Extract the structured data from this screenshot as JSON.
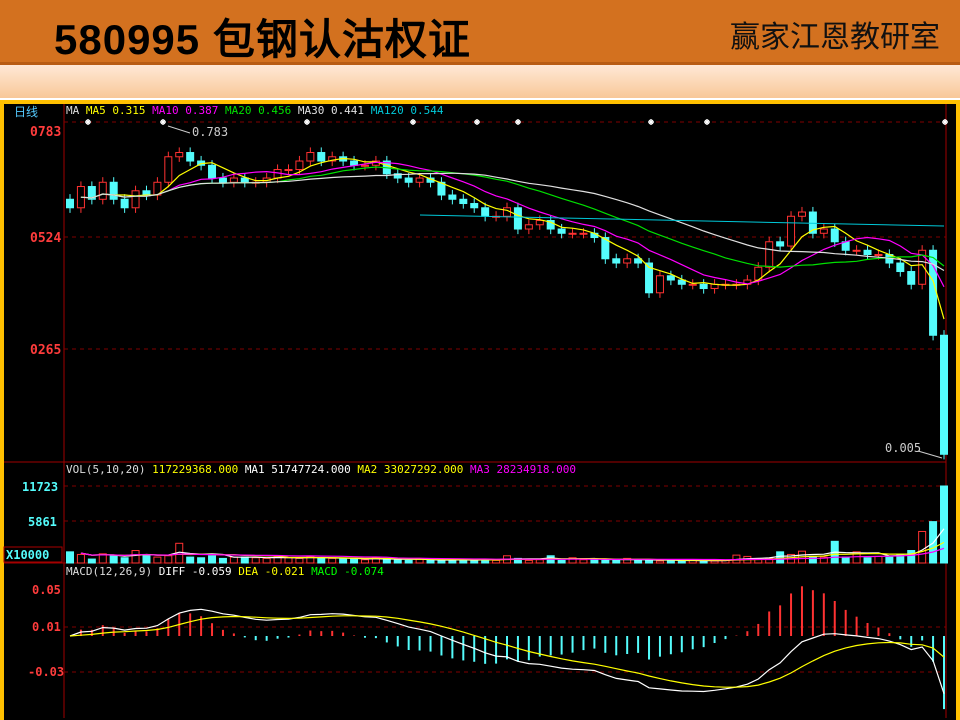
{
  "header": {
    "title": "580995 包钢认沽权证",
    "brand": "赢家江恩教研室"
  },
  "chart_data": [
    {
      "type": "candlestick",
      "period_label": "日线",
      "legend": {
        "prefix": "MA",
        "items": [
          {
            "label": "MA5",
            "value": "0.315",
            "color": "#ffff00"
          },
          {
            "label": "MA10",
            "value": "0.387",
            "color": "#ff00ff"
          },
          {
            "label": "MA20",
            "value": "0.456",
            "color": "#00e000"
          },
          {
            "label": "MA30",
            "value": "0.441",
            "color": "#e0e0e0"
          },
          {
            "label": "MA120",
            "value": "0.544",
            "color": "#00c8d8"
          }
        ]
      },
      "y_ticks": [
        "0783",
        "0524",
        "0265"
      ],
      "ylim": [
        0.0,
        0.8
      ],
      "annotations": {
        "high": "0.783",
        "low": "0.005"
      },
      "close": [
        0.6,
        0.65,
        0.62,
        0.66,
        0.62,
        0.6,
        0.64,
        0.63,
        0.66,
        0.72,
        0.73,
        0.71,
        0.7,
        0.67,
        0.66,
        0.67,
        0.66,
        0.66,
        0.67,
        0.69,
        0.69,
        0.71,
        0.73,
        0.71,
        0.72,
        0.71,
        0.7,
        0.7,
        0.71,
        0.68,
        0.67,
        0.66,
        0.67,
        0.66,
        0.63,
        0.62,
        0.61,
        0.6,
        0.58,
        0.58,
        0.6,
        0.55,
        0.56,
        0.57,
        0.55,
        0.54,
        0.54,
        0.54,
        0.53,
        0.48,
        0.47,
        0.48,
        0.47,
        0.4,
        0.44,
        0.43,
        0.42,
        0.42,
        0.41,
        0.42,
        0.42,
        0.42,
        0.43,
        0.46,
        0.52,
        0.51,
        0.58,
        0.59,
        0.54,
        0.55,
        0.52,
        0.5,
        0.5,
        0.49,
        0.49,
        0.47,
        0.45,
        0.42,
        0.5,
        0.3,
        0.02
      ],
      "ma120": [
        0.583,
        0.557
      ],
      "colors": {
        "up": "#ff3232",
        "down": "#54fcfc"
      }
    },
    {
      "type": "bar",
      "title": "VOL(5,10,20)",
      "legend": [
        {
          "label": "",
          "value": "117229368.000",
          "color": "#ffff00"
        },
        {
          "label": "MA1",
          "value": "51747724.000",
          "color": "#ffffff"
        },
        {
          "label": "MA2",
          "value": "33027292.000",
          "color": "#ffff00"
        },
        {
          "label": "MA3",
          "value": "28234918.000",
          "color": "#ff00ff"
        }
      ],
      "y_ticks": [
        "11723",
        "5861"
      ],
      "unit": "X10000",
      "ylim": [
        0,
        11723
      ],
      "values": [
        1700,
        1300,
        600,
        1400,
        1100,
        800,
        1900,
        1300,
        900,
        1100,
        3000,
        900,
        800,
        1100,
        700,
        900,
        900,
        800,
        700,
        900,
        800,
        700,
        1000,
        700,
        700,
        600,
        600,
        500,
        800,
        600,
        500,
        400,
        600,
        400,
        400,
        500,
        500,
        400,
        600,
        400,
        1100,
        700,
        400,
        500,
        1100,
        400,
        800,
        500,
        600,
        400,
        400,
        700,
        400,
        500,
        300,
        400,
        300,
        400,
        400,
        300,
        400,
        1200,
        1000,
        600,
        700,
        1700,
        1300,
        1800,
        1000,
        900,
        3300,
        900,
        1700,
        800,
        1000,
        900,
        1300,
        1900,
        4800,
        6300,
        11723
      ]
    },
    {
      "type": "bar",
      "title": "MACD(12,26,9)",
      "legend": [
        {
          "label": "DIFF",
          "value": "-0.059",
          "color": "#ffffff"
        },
        {
          "label": "DEA",
          "value": "-0.021",
          "color": "#ffff00"
        },
        {
          "label": "MACD",
          "value": "-0.074",
          "color": "#00ff00"
        }
      ],
      "y_ticks": [
        "0.05",
        "0.01",
        "-0.03"
      ],
      "ylim": [
        -0.075,
        0.06
      ]
    }
  ]
}
